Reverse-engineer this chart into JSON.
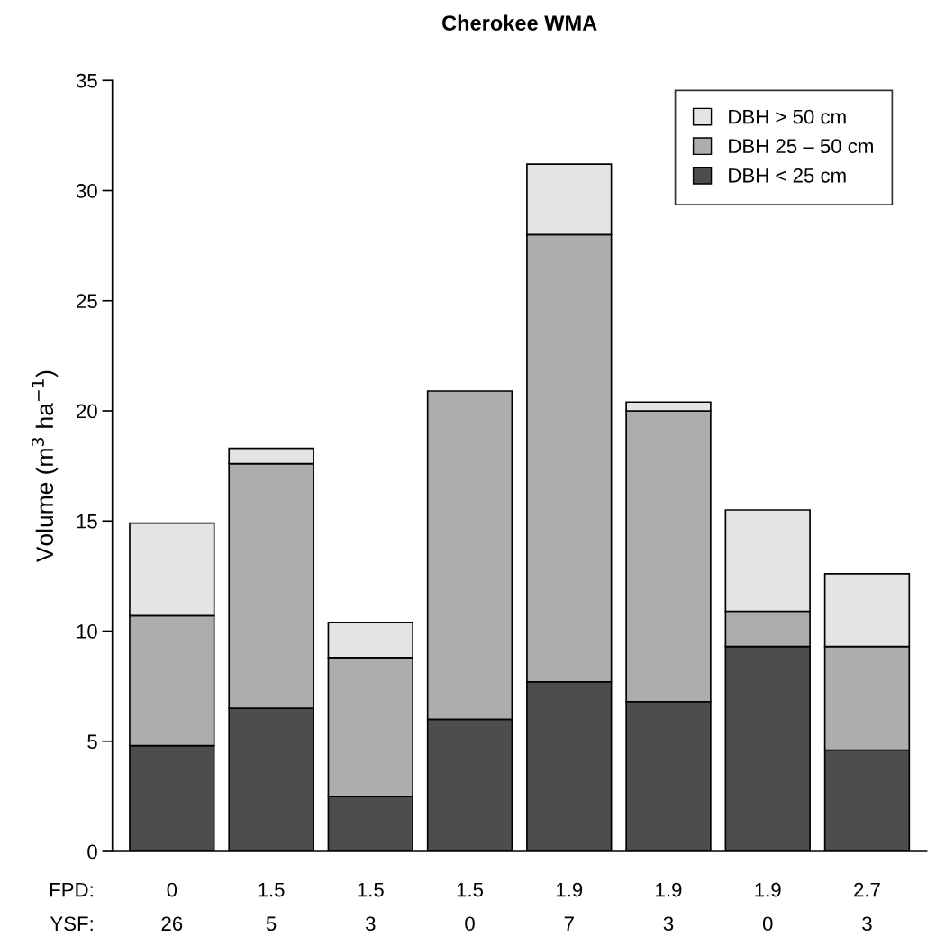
{
  "chart_data": {
    "type": "bar",
    "title": "Cherokee WMA",
    "ylabel": "Volume (m$^{3}$ ha$^{−1}$)",
    "categories": [
      "0\n26",
      "1.5\n5",
      "1.5\n3",
      "1.5\n0",
      "1.9\n7",
      "1.9\n3",
      "1.9\n0",
      "2.7\n3"
    ],
    "annotations": [
      "FPD:",
      "YSF:"
    ],
    "stacked": true,
    "series": [
      {
        "name": "DBH < 25 cm",
        "color": "#4d4d4d",
        "values": [
          4.8,
          6.5,
          2.5,
          6.0,
          7.7,
          6.8,
          9.3,
          4.6
        ]
      },
      {
        "name": "DBH 25 – 50 cm",
        "color": "#adadad",
        "values": [
          5.9,
          11.1,
          6.3,
          14.9,
          20.3,
          13.2,
          1.6,
          4.7
        ]
      },
      {
        "name": "DBH > 50 cm",
        "color": "#e4e4e4",
        "values": [
          4.2,
          0.7,
          1.6,
          null,
          3.2,
          0.4,
          4.6,
          3.3
        ]
      }
    ],
    "ylim": [
      0,
      35
    ],
    "yticks": [
      0,
      5,
      10,
      15,
      20,
      25,
      30,
      35
    ],
    "legend": "top right"
  }
}
